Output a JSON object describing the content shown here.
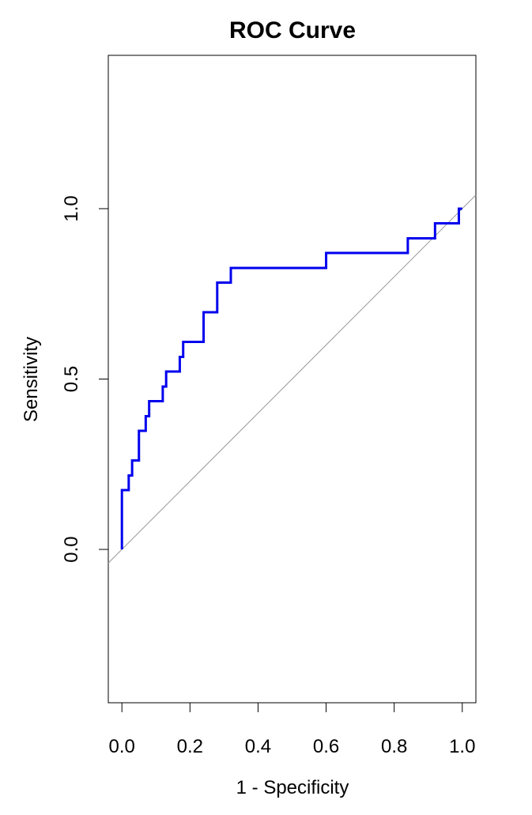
{
  "chart_data": {
    "type": "line",
    "title": "ROC Curve",
    "xlabel": "1 - Specificity",
    "ylabel": "Sensitivity",
    "xlim": [
      -0.04,
      1.04
    ],
    "ylim": [
      -0.45,
      1.45
    ],
    "x_ticks": [
      0.0,
      0.2,
      0.4,
      0.6,
      0.8,
      1.0
    ],
    "x_tick_labels": [
      "0.0",
      "0.2",
      "0.4",
      "0.6",
      "0.8",
      "1.0"
    ],
    "y_ticks": [
      0.0,
      0.5,
      1.0
    ],
    "y_tick_labels": [
      "0.0",
      "0.5",
      "1.0"
    ],
    "grid": false,
    "legend": "none",
    "reference_line": {
      "intercept": 0,
      "slope": 1,
      "color": "#999999"
    },
    "series": [
      {
        "color": "#0000ee",
        "x": [
          0.0,
          0.0,
          0.02,
          0.02,
          0.03,
          0.03,
          0.05,
          0.05,
          0.07,
          0.07,
          0.08,
          0.08,
          0.12,
          0.12,
          0.13,
          0.13,
          0.17,
          0.17,
          0.18,
          0.18,
          0.24,
          0.24,
          0.28,
          0.28,
          0.32,
          0.32,
          0.6,
          0.6,
          0.84,
          0.84,
          0.92,
          0.92,
          0.99,
          0.99,
          1.0
        ],
        "y": [
          0.0,
          0.174,
          0.174,
          0.217,
          0.217,
          0.261,
          0.261,
          0.348,
          0.348,
          0.391,
          0.391,
          0.435,
          0.435,
          0.478,
          0.478,
          0.522,
          0.522,
          0.565,
          0.565,
          0.609,
          0.609,
          0.696,
          0.696,
          0.783,
          0.783,
          0.826,
          0.826,
          0.87,
          0.87,
          0.913,
          0.913,
          0.957,
          0.957,
          1.0,
          1.0
        ]
      }
    ]
  }
}
